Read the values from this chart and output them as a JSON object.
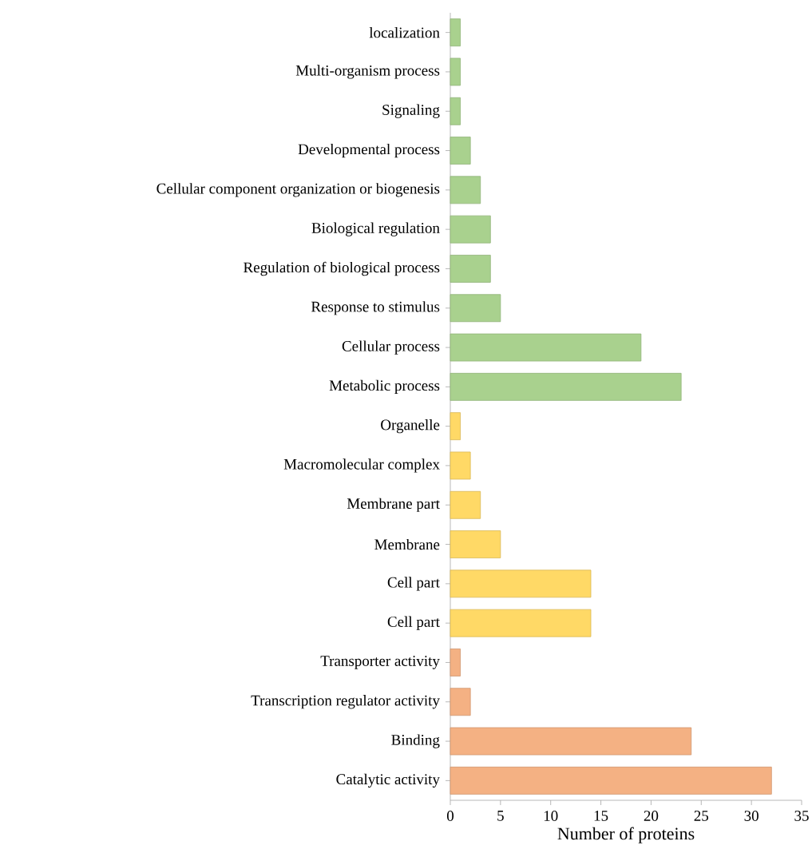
{
  "chart_data": {
    "type": "bar",
    "orientation": "horizontal",
    "xlabel": "Number of proteins",
    "categories": [
      "localization",
      "Multi-organism process",
      "Signaling",
      "Developmental process",
      "Cellular component organization or biogenesis",
      "Biological regulation",
      "Regulation of biological process",
      "Response to stimulus",
      "Cellular process",
      "Metabolic process",
      "Organelle",
      "Macromolecular complex",
      "Membrane part",
      "Membrane",
      "Cell part",
      "Cell part",
      "Transporter activity",
      "Transcription regulator activity",
      "Binding",
      "Catalytic activity"
    ],
    "values": [
      1,
      1,
      1,
      2,
      3,
      4,
      4,
      5,
      19,
      23,
      1,
      2,
      3,
      5,
      14,
      14,
      1,
      2,
      24,
      32
    ],
    "colors": [
      "#a9d18e",
      "#a9d18e",
      "#a9d18e",
      "#a9d18e",
      "#a9d18e",
      "#a9d18e",
      "#a9d18e",
      "#a9d18e",
      "#a9d18e",
      "#a9d18e",
      "#ffd966",
      "#ffd966",
      "#ffd966",
      "#ffd966",
      "#ffd966",
      "#ffd966",
      "#f4b183",
      "#f4b183",
      "#f4b183",
      "#f4b183"
    ],
    "xlim": [
      0,
      35
    ],
    "xticks": [
      0,
      5,
      10,
      15,
      20,
      25,
      30,
      35
    ],
    "grid": false
  }
}
